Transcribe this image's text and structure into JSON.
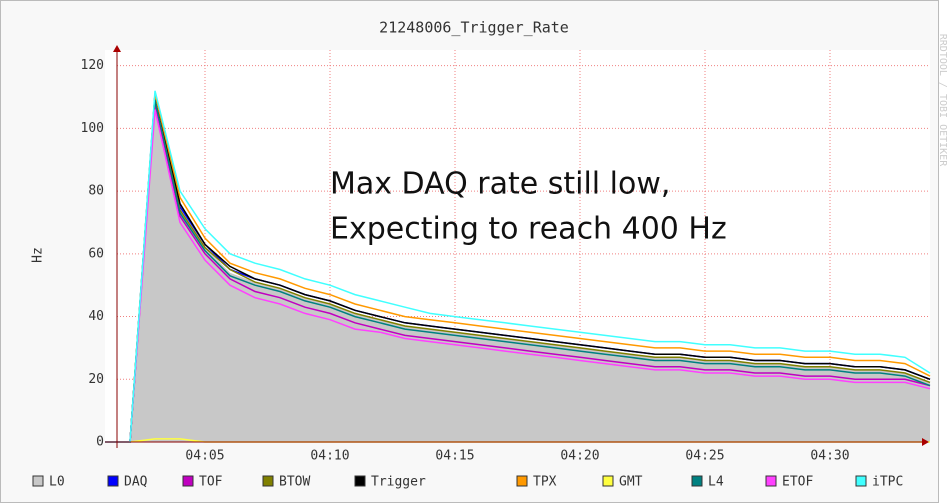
{
  "chart_data": {
    "type": "line",
    "title": "21248006_Trigger_Rate",
    "y_label": "Hz",
    "watermark": "RRDTOOL / TOBI OETIKER",
    "annotations": [
      "Max DAQ rate still low,",
      "Expecting to reach 400 Hz"
    ],
    "x": [
      "04:01",
      "04:02",
      "04:03",
      "04:04",
      "04:05",
      "04:06",
      "04:07",
      "04:08",
      "04:09",
      "04:10",
      "04:11",
      "04:12",
      "04:13",
      "04:14",
      "04:15",
      "04:16",
      "04:17",
      "04:18",
      "04:19",
      "04:20",
      "04:21",
      "04:22",
      "04:23",
      "04:24",
      "04:25",
      "04:26",
      "04:27",
      "04:28",
      "04:29",
      "04:30",
      "04:31",
      "04:32",
      "04:33",
      "04:34"
    ],
    "xlim": [
      "04:01",
      "04:34"
    ],
    "xticks": [
      "04:05",
      "04:10",
      "04:15",
      "04:20",
      "04:25",
      "04:30"
    ],
    "ylim": [
      0,
      125
    ],
    "yticks": [
      0,
      20,
      40,
      60,
      80,
      100,
      120
    ],
    "grid": true,
    "series": [
      {
        "name": "L0",
        "color": "#c8c8c8",
        "area": true,
        "values": [
          0,
          0,
          110,
          74,
          62,
          54,
          51,
          49,
          46,
          44,
          41,
          39,
          37,
          36,
          35,
          34,
          33,
          32,
          31,
          30,
          29,
          28,
          27,
          27,
          26,
          26,
          25,
          25,
          24,
          24,
          23,
          23,
          22,
          19
        ]
      },
      {
        "name": "DAQ",
        "color": "#0000ff",
        "values": [
          0,
          0,
          111,
          75,
          63,
          55,
          52,
          50,
          47,
          45,
          42,
          40,
          38,
          37,
          36,
          35,
          34,
          33,
          32,
          31,
          30,
          29,
          28,
          28,
          27,
          27,
          26,
          26,
          25,
          25,
          24,
          24,
          23,
          20
        ]
      },
      {
        "name": "TOF",
        "color": "#c000c0",
        "values": [
          0,
          0,
          108,
          72,
          60,
          52,
          48,
          46,
          43,
          41,
          38,
          36,
          34,
          33,
          32,
          31,
          30,
          29,
          28,
          27,
          26,
          25,
          24,
          24,
          23,
          23,
          22,
          22,
          21,
          21,
          20,
          20,
          20,
          18
        ]
      },
      {
        "name": "BTOW",
        "color": "#808000",
        "values": [
          0,
          0,
          110,
          74,
          62,
          55,
          51,
          49,
          46,
          44,
          41,
          39,
          37,
          36,
          35,
          34,
          33,
          32,
          31,
          30,
          29,
          28,
          27,
          27,
          26,
          26,
          25,
          25,
          24,
          24,
          23,
          23,
          22,
          19
        ]
      },
      {
        "name": "Trigger",
        "color": "#000000",
        "values": [
          0,
          0,
          111,
          76,
          63,
          56,
          52,
          50,
          47,
          45,
          42,
          40,
          38,
          37,
          36,
          35,
          34,
          33,
          32,
          31,
          30,
          29,
          28,
          28,
          27,
          27,
          26,
          26,
          25,
          25,
          24,
          24,
          23,
          20
        ]
      },
      {
        "name": "TPX",
        "color": "#ff9900",
        "values": [
          0,
          0,
          111,
          78,
          65,
          57,
          54,
          52,
          49,
          47,
          44,
          42,
          40,
          39,
          38,
          37,
          36,
          35,
          34,
          33,
          32,
          31,
          30,
          30,
          29,
          29,
          28,
          28,
          27,
          27,
          26,
          26,
          25,
          21
        ]
      },
      {
        "name": "GMT",
        "color": "#ffff40",
        "values": [
          0,
          0,
          1,
          1,
          0,
          0,
          0,
          0,
          0,
          0,
          0,
          0,
          0,
          0,
          0,
          0,
          0,
          0,
          0,
          0,
          0,
          0,
          0,
          0,
          0,
          0,
          0,
          0,
          0,
          0,
          0,
          0,
          0,
          0
        ]
      },
      {
        "name": "L4",
        "color": "#008080",
        "values": [
          0,
          0,
          109,
          73,
          61,
          53,
          50,
          48,
          45,
          43,
          40,
          38,
          36,
          35,
          34,
          33,
          32,
          31,
          30,
          29,
          28,
          27,
          26,
          26,
          25,
          25,
          24,
          24,
          23,
          23,
          22,
          22,
          21,
          18
        ]
      },
      {
        "name": "ETOF",
        "color": "#ff40ff",
        "values": [
          0,
          0,
          106,
          70,
          58,
          50,
          46,
          44,
          41,
          39,
          36,
          35,
          33,
          32,
          31,
          30,
          29,
          28,
          27,
          26,
          25,
          24,
          23,
          23,
          22,
          22,
          21,
          21,
          20,
          20,
          19,
          19,
          19,
          17
        ]
      },
      {
        "name": "iTPC",
        "color": "#40ffff",
        "values": [
          0,
          0,
          112,
          80,
          68,
          60,
          57,
          55,
          52,
          50,
          47,
          45,
          43,
          41,
          40,
          39,
          38,
          37,
          36,
          35,
          34,
          33,
          32,
          32,
          31,
          31,
          30,
          30,
          29,
          29,
          28,
          28,
          27,
          22
        ]
      }
    ]
  }
}
